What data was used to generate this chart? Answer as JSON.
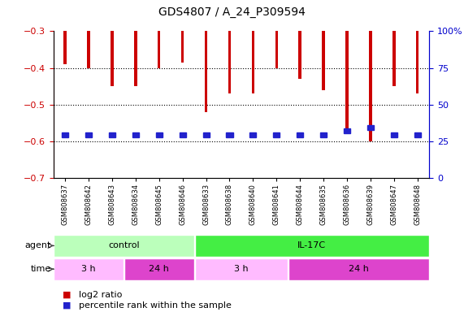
{
  "title": "GDS4807 / A_24_P309594",
  "samples": [
    "GSM808637",
    "GSM808642",
    "GSM808643",
    "GSM808634",
    "GSM808645",
    "GSM808646",
    "GSM808633",
    "GSM808638",
    "GSM808640",
    "GSM808641",
    "GSM808644",
    "GSM808635",
    "GSM808636",
    "GSM808639",
    "GSM808647",
    "GSM808648"
  ],
  "log2_ratio": [
    -0.39,
    -0.4,
    -0.45,
    -0.45,
    -0.4,
    -0.385,
    -0.52,
    -0.47,
    -0.47,
    -0.4,
    -0.43,
    -0.46,
    -0.565,
    -0.6,
    -0.45,
    -0.47
  ],
  "percentile_values": [
    0.295,
    0.295,
    0.295,
    0.295,
    0.295,
    0.295,
    0.295,
    0.295,
    0.295,
    0.295,
    0.295,
    0.295,
    0.32,
    0.345,
    0.295,
    0.295
  ],
  "bar_color": "#cc0000",
  "percentile_color": "#2222cc",
  "ylim_left": [
    -0.7,
    -0.3
  ],
  "ylim_right": [
    0,
    100
  ],
  "yticks_left": [
    -0.7,
    -0.6,
    -0.5,
    -0.4,
    -0.3
  ],
  "yticks_right": [
    0,
    25,
    50,
    75,
    100
  ],
  "gridlines": [
    -0.4,
    -0.5,
    -0.6
  ],
  "agent_groups": [
    {
      "label": "control",
      "start": 0,
      "end": 5,
      "color": "#bbffbb"
    },
    {
      "label": "IL-17C",
      "start": 6,
      "end": 15,
      "color": "#44ee44"
    }
  ],
  "time_groups": [
    {
      "label": "3 h",
      "start": 0,
      "end": 2,
      "color": "#ffbbff"
    },
    {
      "label": "24 h",
      "start": 3,
      "end": 5,
      "color": "#dd44cc"
    },
    {
      "label": "3 h",
      "start": 6,
      "end": 9,
      "color": "#ffbbff"
    },
    {
      "label": "24 h",
      "start": 10,
      "end": 15,
      "color": "#dd44cc"
    }
  ],
  "bg_color": "#ffffff",
  "plot_bg_color": "#ffffff",
  "axis_color_left": "#cc0000",
  "axis_color_right": "#0000cc",
  "bar_width": 0.12
}
